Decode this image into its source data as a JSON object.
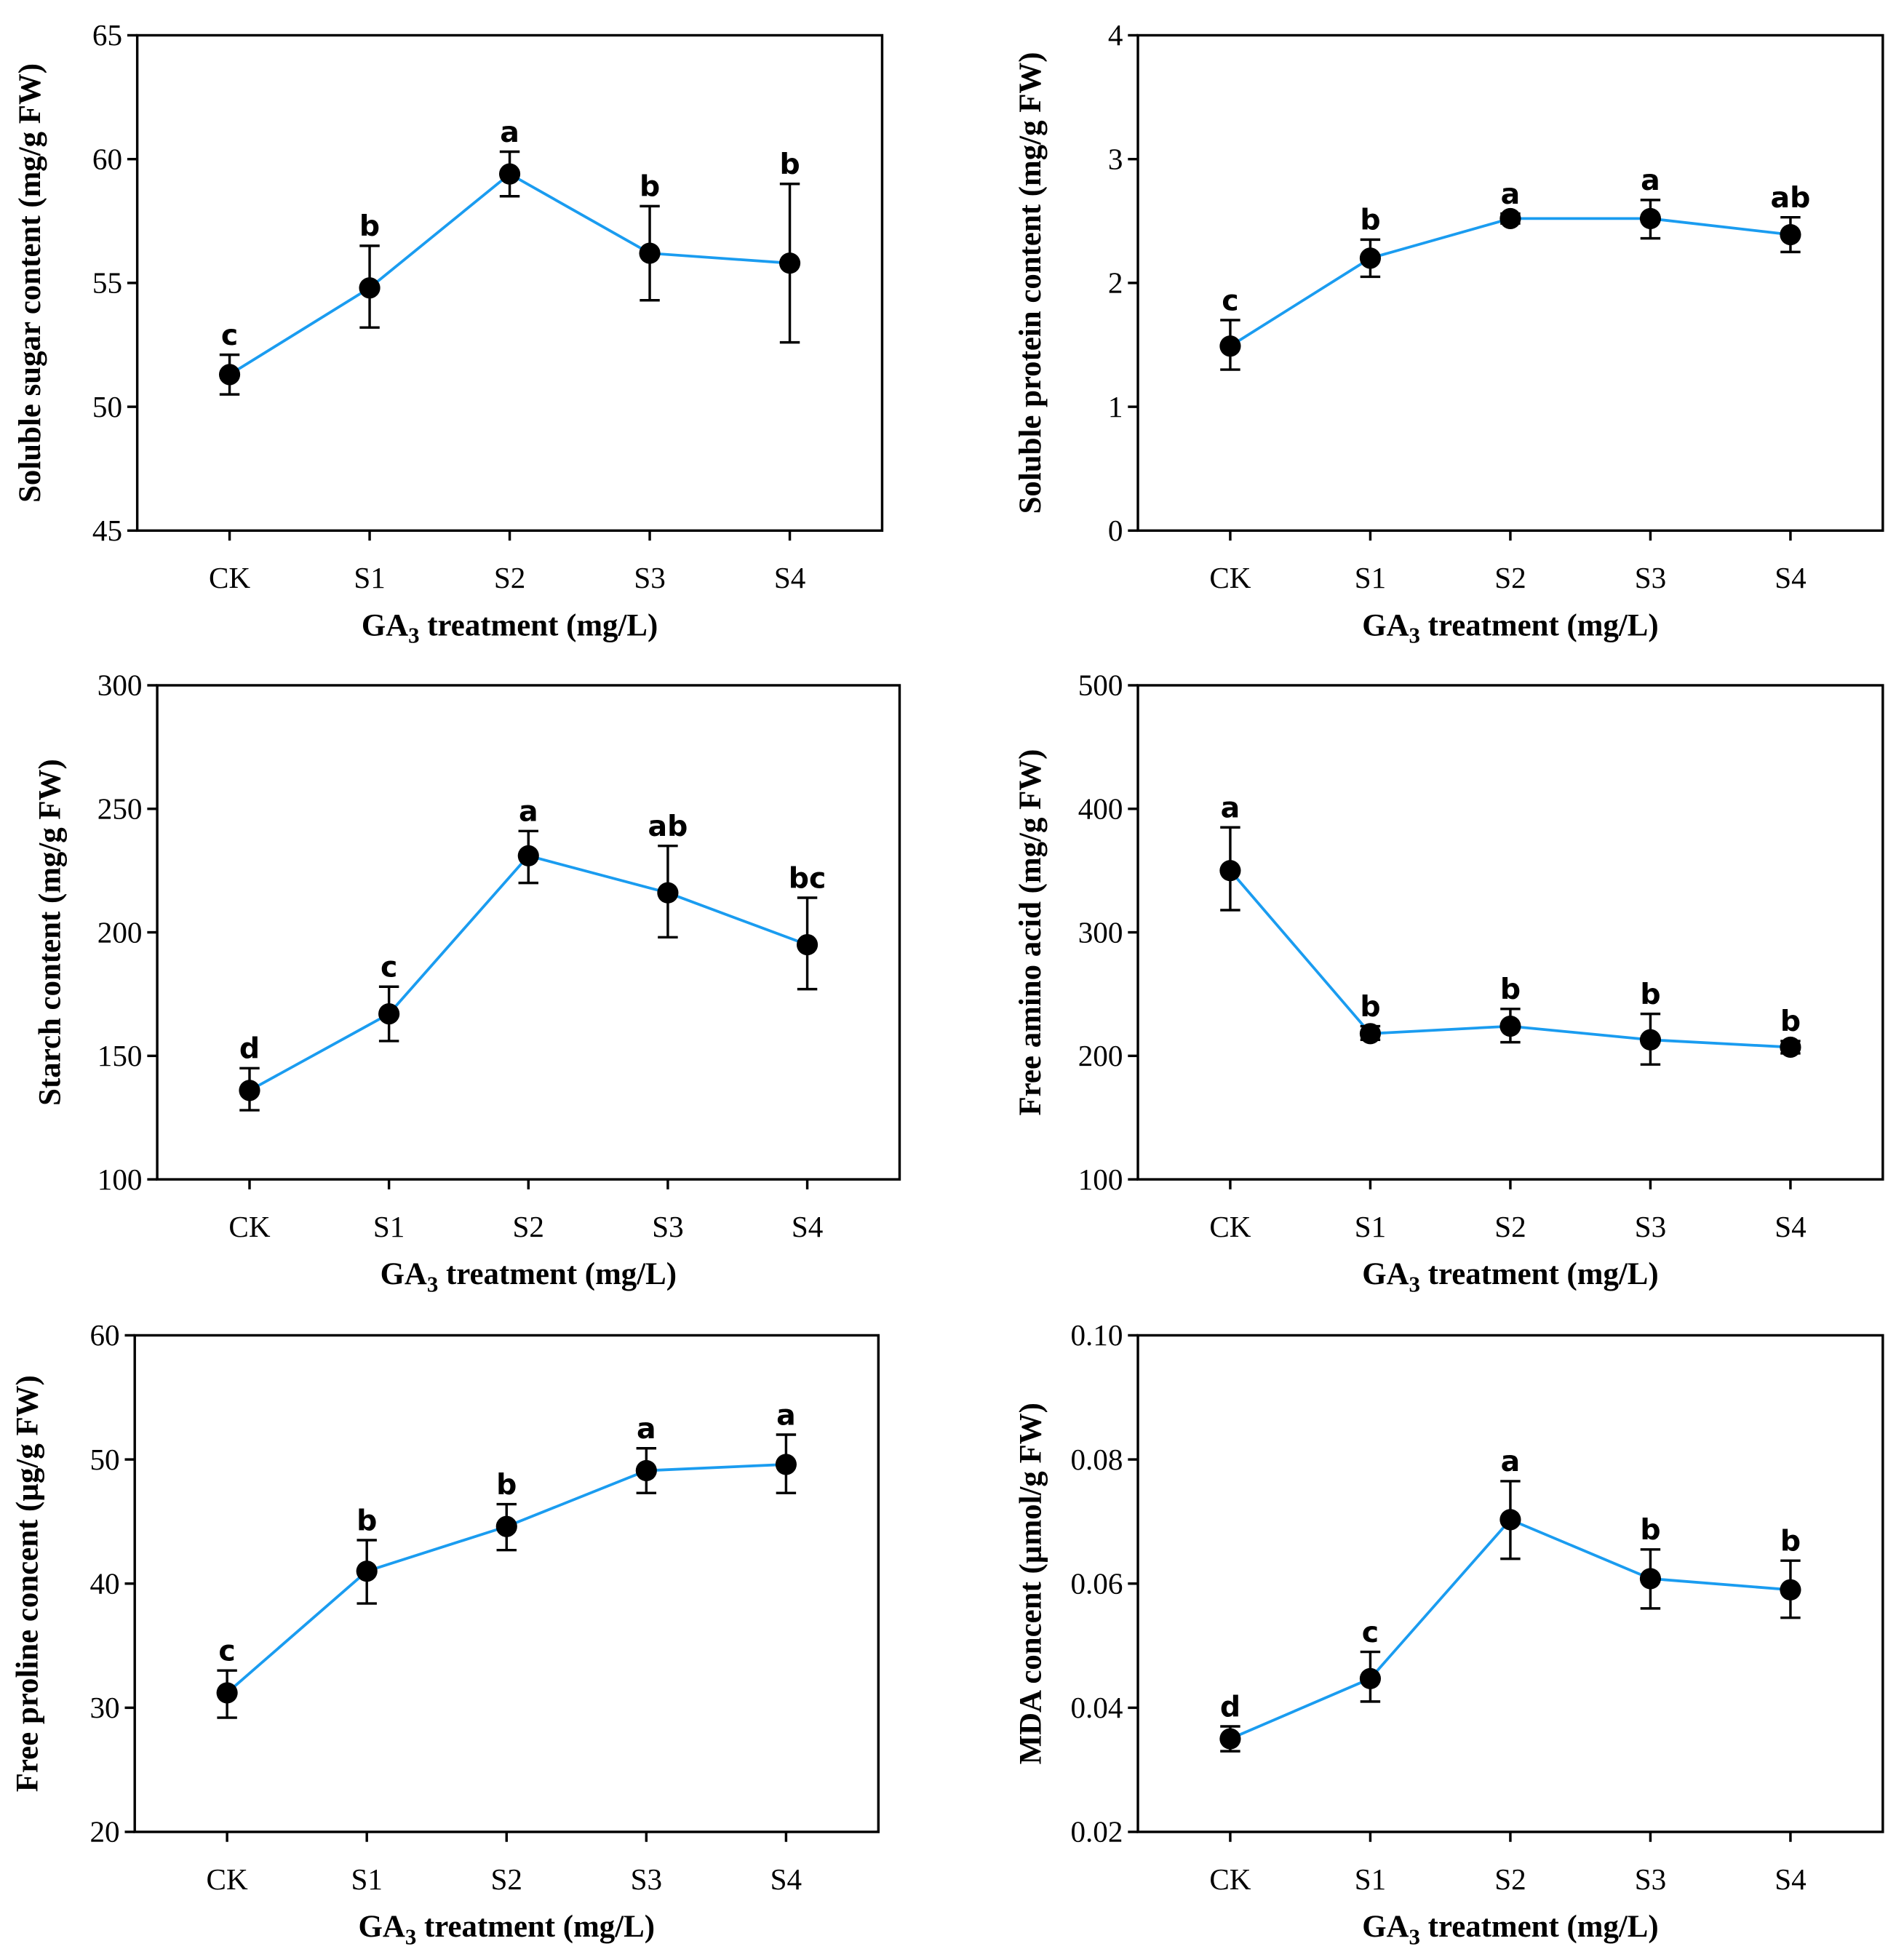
{
  "chart_data": [
    {
      "type": "line",
      "title": "",
      "ylabel": "Soluble sugar content (mg/g FW)",
      "xlabel_parts": [
        "GA",
        "3",
        " treatment (mg/L)"
      ],
      "categories": [
        "CK",
        "S1",
        "S2",
        "S3",
        "S4"
      ],
      "ylim": [
        45,
        65
      ],
      "yticks": [
        "45",
        "50",
        "55",
        "60",
        "65"
      ],
      "values": [
        51.3,
        54.8,
        59.4,
        56.2,
        55.8
      ],
      "err_low": [
        50.5,
        53.2,
        58.5,
        54.3,
        52.6
      ],
      "err_high": [
        52.1,
        56.5,
        60.3,
        58.1,
        59.0
      ],
      "letters": [
        "c",
        "b",
        "a",
        "b",
        "b"
      ]
    },
    {
      "type": "line",
      "title": "",
      "ylabel": "Soluble protein content (mg/g FW)",
      "xlabel_parts": [
        "GA",
        "3",
        " treatment (mg/L)"
      ],
      "categories": [
        "CK",
        "S1",
        "S2",
        "S3",
        "S4"
      ],
      "ylim": [
        0,
        4
      ],
      "yticks": [
        "0",
        "1",
        "2",
        "3",
        "4"
      ],
      "values": [
        1.49,
        2.2,
        2.52,
        2.52,
        2.39
      ],
      "err_low": [
        1.3,
        2.05,
        2.48,
        2.36,
        2.25
      ],
      "err_high": [
        1.7,
        2.35,
        2.56,
        2.67,
        2.53
      ],
      "letters": [
        "c",
        "b",
        "a",
        "a",
        "ab"
      ]
    },
    {
      "type": "line",
      "title": "",
      "ylabel": "Starch content (mg/g FW)",
      "xlabel_parts": [
        "GA",
        "3",
        " treatment (mg/L)"
      ],
      "categories": [
        "CK",
        "S1",
        "S2",
        "S3",
        "S4"
      ],
      "ylim": [
        100,
        300
      ],
      "yticks": [
        "100",
        "150",
        "200",
        "250",
        "300"
      ],
      "values": [
        136,
        167,
        231,
        216,
        195
      ],
      "err_low": [
        128,
        156,
        220,
        198,
        177
      ],
      "err_high": [
        145,
        178,
        241,
        235,
        214
      ],
      "letters": [
        "d",
        "c",
        "a",
        "ab",
        "bc"
      ]
    },
    {
      "type": "line",
      "title": "",
      "ylabel": "Free amino acid (mg/g FW)",
      "xlabel_parts": [
        "GA",
        "3",
        " treatment (mg/L)"
      ],
      "categories": [
        "CK",
        "S1",
        "S2",
        "S3",
        "S4"
      ],
      "ylim": [
        100,
        500
      ],
      "yticks": [
        "100",
        "200",
        "300",
        "400",
        "500"
      ],
      "values": [
        350,
        218,
        224,
        213,
        207
      ],
      "err_low": [
        318,
        213,
        211,
        193,
        202
      ],
      "err_high": [
        385,
        224,
        238,
        234,
        212
      ],
      "letters": [
        "a",
        "b",
        "b",
        "b",
        "b"
      ]
    },
    {
      "type": "line",
      "title": "",
      "ylabel": "Free proline concent (µg/g FW)",
      "xlabel_parts": [
        "GA",
        "3",
        " treatment (mg/L)"
      ],
      "categories": [
        "CK",
        "S1",
        "S2",
        "S3",
        "S4"
      ],
      "ylim": [
        20,
        60
      ],
      "yticks": [
        "20",
        "30",
        "40",
        "50",
        "60"
      ],
      "values": [
        31.2,
        41.0,
        44.6,
        49.1,
        49.6
      ],
      "err_low": [
        29.2,
        38.4,
        42.7,
        47.3,
        47.3
      ],
      "err_high": [
        33.0,
        43.5,
        46.4,
        50.9,
        52.0
      ],
      "letters": [
        "c",
        "b",
        "b",
        "a",
        "a"
      ]
    },
    {
      "type": "line",
      "title": "",
      "ylabel": "MDA concent (µmol/g FW)",
      "xlabel_parts": [
        "GA",
        "3",
        " treatment (mg/L)"
      ],
      "categories": [
        "CK",
        "S1",
        "S2",
        "S3",
        "S4"
      ],
      "ylim": [
        0.02,
        0.1
      ],
      "yticks": [
        "0.02",
        "0.04",
        "0.06",
        "0.08",
        "0.10"
      ],
      "values": [
        0.035,
        0.0447,
        0.0703,
        0.0608,
        0.059
      ],
      "err_low": [
        0.033,
        0.041,
        0.064,
        0.056,
        0.0545
      ],
      "err_high": [
        0.037,
        0.049,
        0.0765,
        0.0655,
        0.0637
      ],
      "letters": [
        "d",
        "c",
        "a",
        "b",
        "b"
      ]
    }
  ],
  "colors": {
    "line": "#1a9cf0",
    "marker": "#000000",
    "axis": "#000000"
  }
}
